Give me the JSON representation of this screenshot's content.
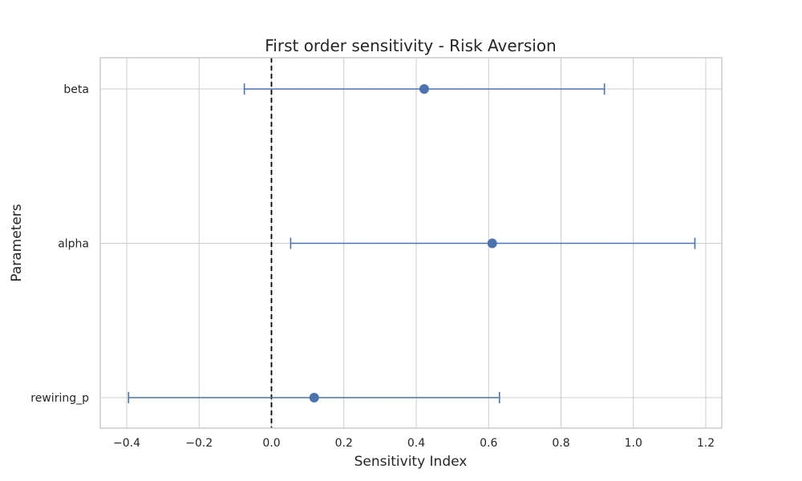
{
  "chart_data": {
    "type": "errorbar",
    "title": "First order sensitivity - Risk Aversion",
    "xlabel": "Sensitivity Index",
    "ylabel": "Parameters",
    "xlim": [
      -0.47,
      1.245
    ],
    "xticks": [
      -0.4,
      -0.2,
      0.0,
      0.2,
      0.4,
      0.6,
      0.8,
      1.0,
      1.2
    ],
    "xtick_labels": [
      "−0.4",
      "−0.2",
      "0.0",
      "0.2",
      "0.4",
      "0.6",
      "0.8",
      "1.0",
      "1.2"
    ],
    "grid": true,
    "reference_line": {
      "x": 0.0,
      "style": "dashed",
      "color": "#000000"
    },
    "categories": [
      "beta",
      "alpha",
      "rewiring_p"
    ],
    "values": [
      0.422,
      0.61,
      0.118
    ],
    "lower": [
      -0.075,
      0.053,
      -0.395
    ],
    "upper": [
      0.92,
      1.17,
      0.63
    ],
    "colors": {
      "series": "#4c72b0",
      "grid": "#cccccc",
      "frame": "#cccccc",
      "text": "#262626"
    }
  }
}
